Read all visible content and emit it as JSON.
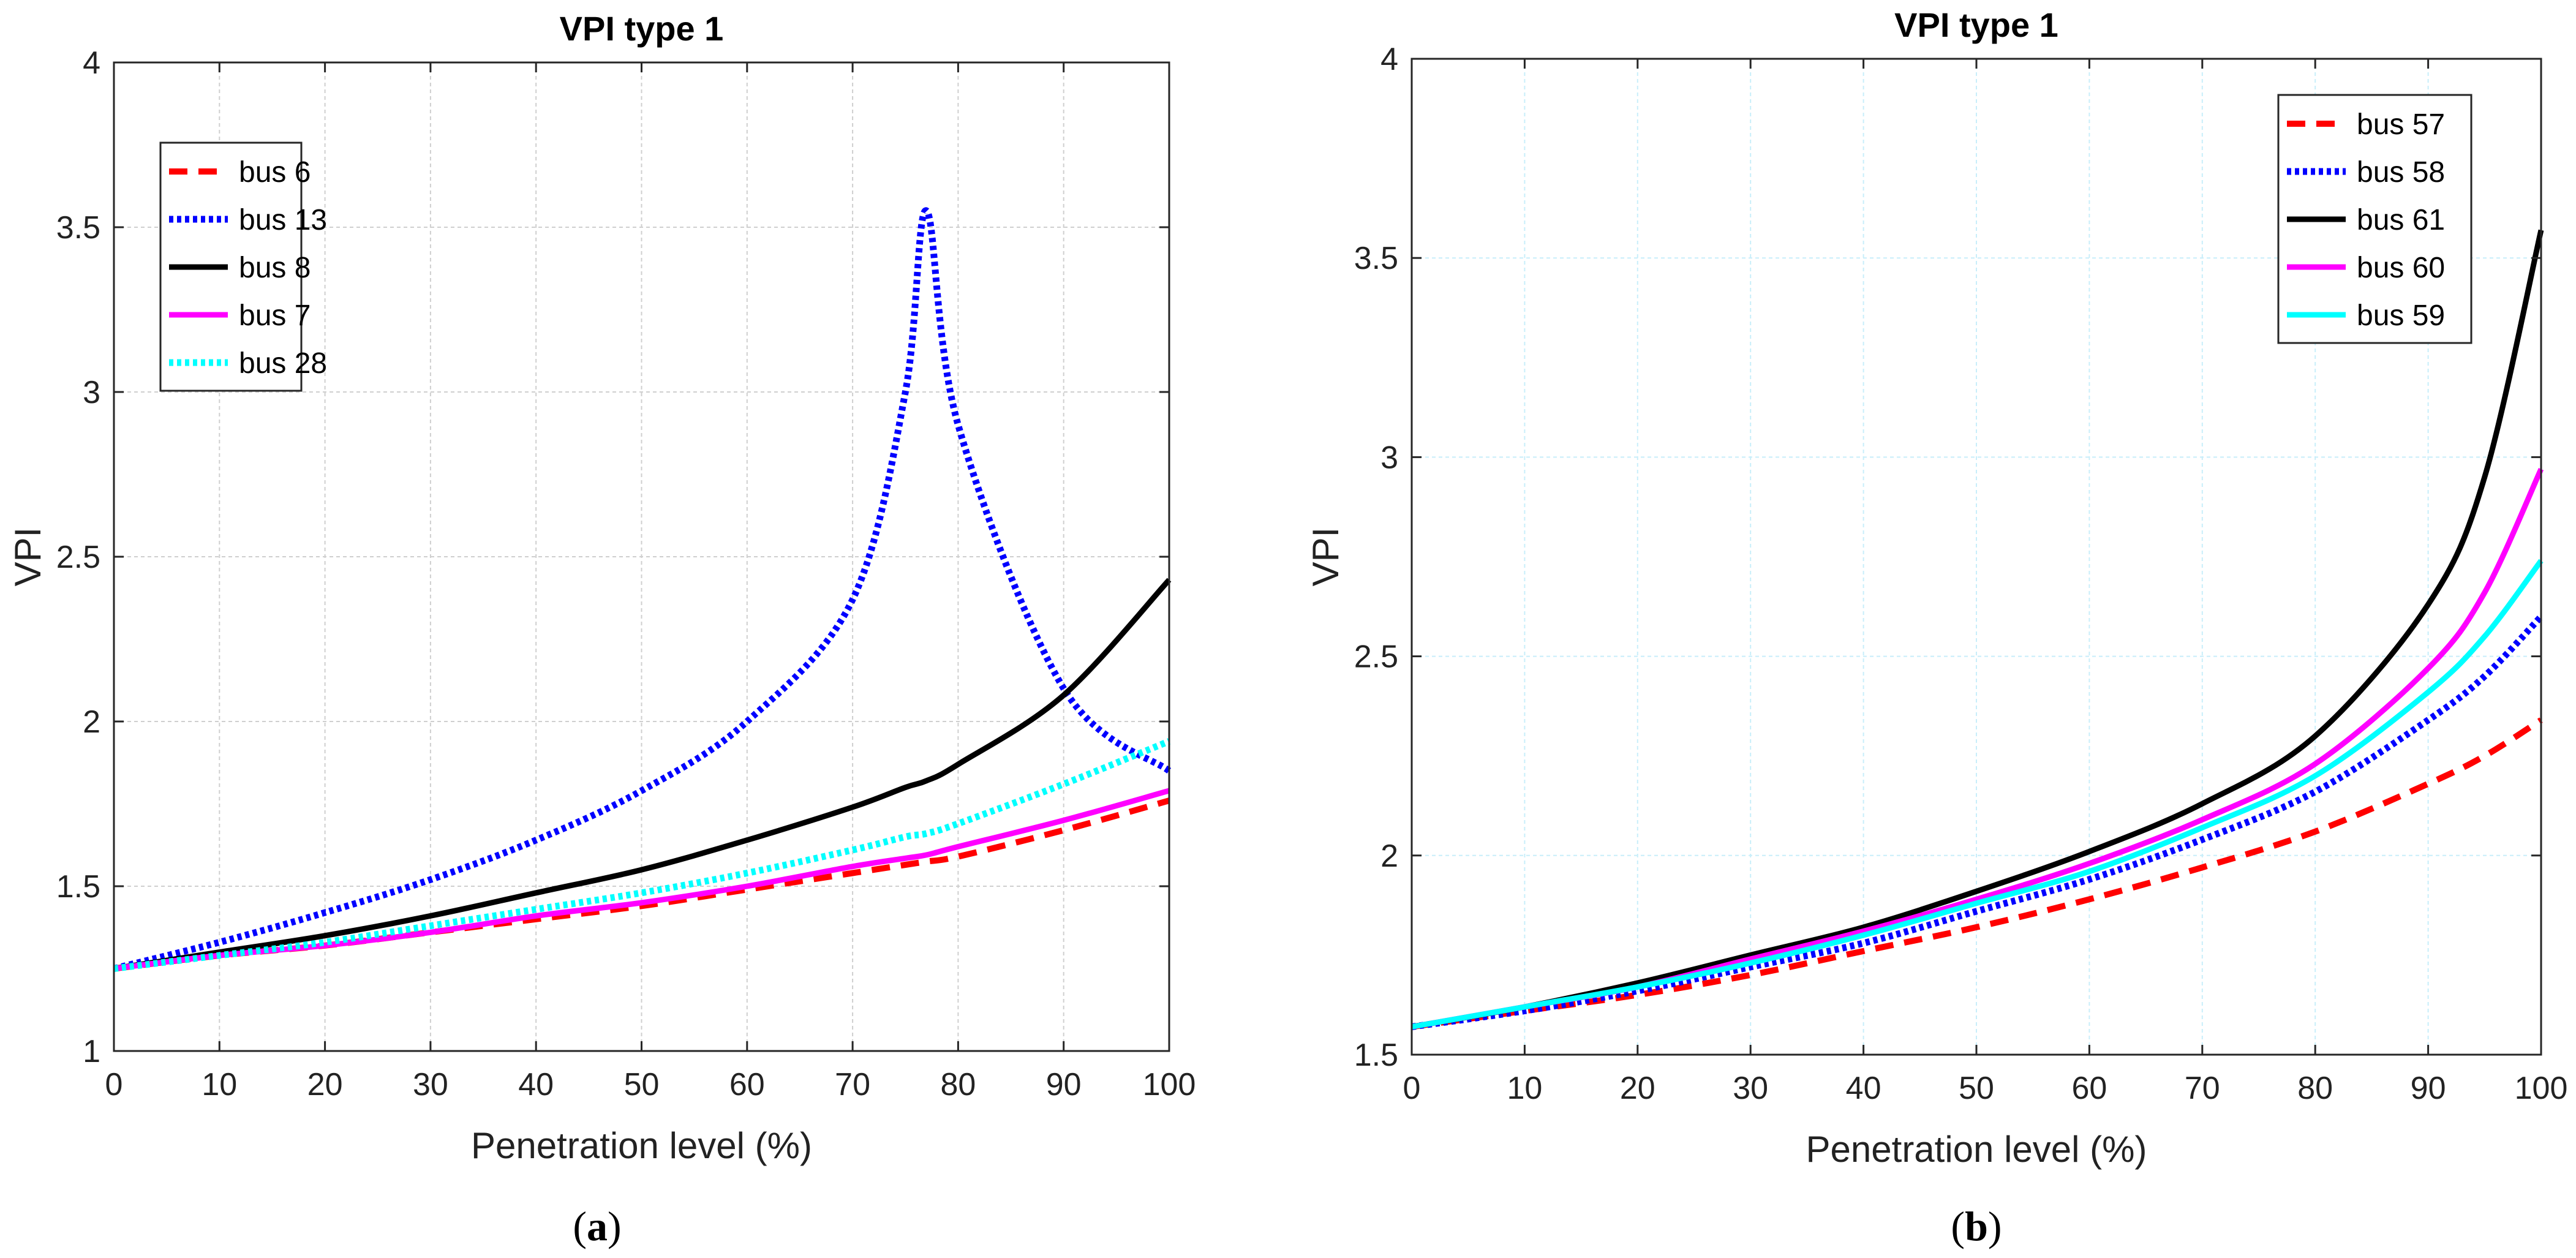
{
  "chart_data": [
    {
      "type": "line",
      "title": "VPI type 1",
      "xlabel": "Penetration level (%)",
      "ylabel": "VPI",
      "xlim": [
        0,
        100
      ],
      "ylim": [
        1,
        4
      ],
      "xticks": [
        0,
        10,
        20,
        30,
        40,
        50,
        60,
        70,
        80,
        90,
        100
      ],
      "yticks": [
        1,
        1.5,
        2,
        2.5,
        3,
        3.5,
        4
      ],
      "ytick_labels": [
        "1",
        "1.5",
        "2",
        "2.5",
        "3",
        "3.5",
        "4"
      ],
      "grid": true,
      "grid_color": "#cfcfcf",
      "legend_position": "top-left",
      "caption": "a",
      "x": [
        0,
        10,
        20,
        30,
        40,
        50,
        60,
        70,
        75,
        77,
        80,
        90,
        100
      ],
      "series": [
        {
          "name": "bus 6",
          "color": "#ff0000",
          "style": "dashed",
          "values": [
            1.25,
            1.29,
            1.32,
            1.36,
            1.4,
            1.44,
            1.49,
            1.54,
            1.565,
            1.575,
            1.59,
            1.67,
            1.76
          ]
        },
        {
          "name": "bus 13",
          "color": "#0000ff",
          "style": "dotted",
          "values": [
            1.25,
            1.33,
            1.42,
            1.52,
            1.64,
            1.79,
            2.0,
            2.37,
            3.0,
            3.55,
            2.9,
            2.1,
            1.85
          ]
        },
        {
          "name": "bus 8",
          "color": "#000000",
          "style": "solid",
          "values": [
            1.25,
            1.3,
            1.35,
            1.41,
            1.48,
            1.55,
            1.64,
            1.74,
            1.8,
            1.82,
            1.87,
            2.08,
            2.43
          ]
        },
        {
          "name": "bus 7",
          "color": "#ff00ff",
          "style": "solid",
          "values": [
            1.25,
            1.29,
            1.32,
            1.36,
            1.41,
            1.45,
            1.5,
            1.56,
            1.585,
            1.595,
            1.62,
            1.7,
            1.79
          ]
        },
        {
          "name": "bus 28",
          "color": "#00ffff",
          "style": "dotted",
          "values": [
            1.25,
            1.29,
            1.33,
            1.38,
            1.43,
            1.48,
            1.54,
            1.61,
            1.65,
            1.66,
            1.69,
            1.81,
            1.94
          ]
        }
      ]
    },
    {
      "type": "line",
      "title": "VPI type 1",
      "xlabel": "Penetration level (%)",
      "ylabel": "VPI",
      "xlim": [
        0,
        100
      ],
      "ylim": [
        1.5,
        4
      ],
      "xticks": [
        0,
        10,
        20,
        30,
        40,
        50,
        60,
        70,
        80,
        90,
        100
      ],
      "yticks": [
        1.5,
        2,
        2.5,
        3,
        3.5,
        4
      ],
      "ytick_labels": [
        "1.5",
        "2",
        "2.5",
        "3",
        "3.5",
        "4"
      ],
      "grid": true,
      "grid_color": "#c8eefa",
      "legend_position": "top-right",
      "caption": "b",
      "x": [
        0,
        10,
        20,
        30,
        40,
        50,
        60,
        70,
        80,
        90,
        95,
        100
      ],
      "series": [
        {
          "name": "bus 57",
          "color": "#ff0000",
          "style": "dashed",
          "values": [
            1.57,
            1.61,
            1.65,
            1.7,
            1.76,
            1.82,
            1.89,
            1.97,
            2.06,
            2.18,
            2.25,
            2.34
          ]
        },
        {
          "name": "bus 58",
          "color": "#0000ff",
          "style": "dotted",
          "values": [
            1.57,
            1.61,
            1.66,
            1.72,
            1.78,
            1.86,
            1.94,
            2.04,
            2.16,
            2.34,
            2.45,
            2.6
          ]
        },
        {
          "name": "bus 61",
          "color": "#000000",
          "style": "solid",
          "values": [
            1.57,
            1.62,
            1.68,
            1.75,
            1.82,
            1.91,
            2.01,
            2.13,
            2.3,
            2.63,
            2.95,
            3.57
          ]
        },
        {
          "name": "bus 60",
          "color": "#ff00ff",
          "style": "solid",
          "values": [
            1.57,
            1.62,
            1.67,
            1.74,
            1.81,
            1.89,
            1.98,
            2.09,
            2.23,
            2.47,
            2.66,
            2.97
          ]
        },
        {
          "name": "bus 59",
          "color": "#00ffff",
          "style": "solid",
          "values": [
            1.57,
            1.62,
            1.67,
            1.73,
            1.8,
            1.88,
            1.96,
            2.07,
            2.2,
            2.41,
            2.55,
            2.74
          ]
        }
      ]
    }
  ]
}
